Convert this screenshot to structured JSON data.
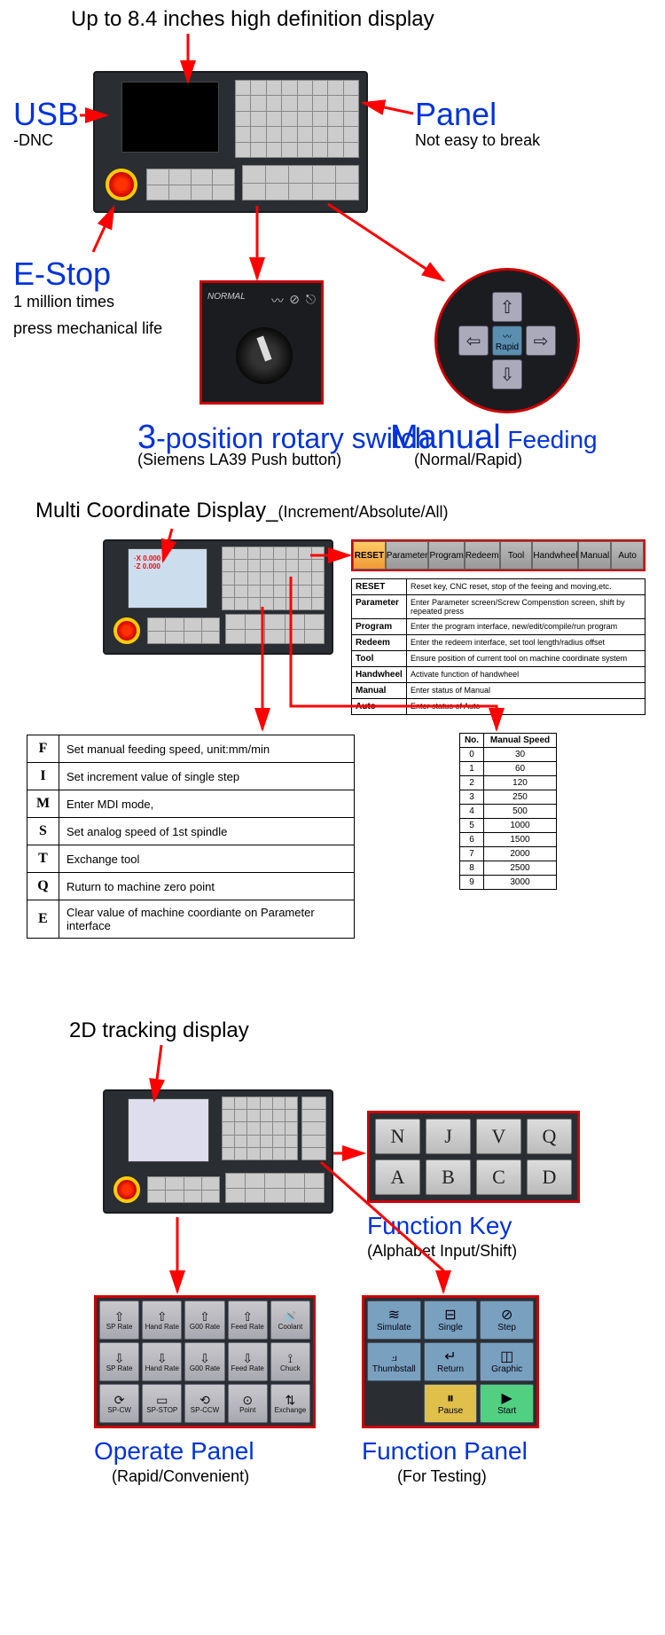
{
  "colors": {
    "blue_title": "#0033dd",
    "arrow": "#ff0000",
    "border_red": "#cc0000",
    "panel_bg": "#2a2e33",
    "fp_blue": "#7aa0c0",
    "fp_pause": "#e0c04a",
    "fp_start": "#50d080"
  },
  "s1": {
    "headline": "Up to 8.4 inches high definition display",
    "usb": "USB",
    "dnc": "-DNC",
    "panel": "Panel",
    "panel_sub": "Not easy to break",
    "estop": "E-Stop",
    "estop_sub1": "1 million times",
    "estop_sub2": "press mechanical life",
    "rotary_num": "3",
    "rotary": "-position rotary switch",
    "rotary_sub": "(Siemens LA39 Push button)",
    "manual_main": "Manual",
    "manual_feed": " Feeding",
    "manual_sub": "(Normal/Rapid)",
    "rotary_normal": "NORMAL",
    "arrow_up": "⇧",
    "arrow_down": "⇩",
    "arrow_left": "⇦",
    "arrow_right": "⇨",
    "rapid": "Rapid"
  },
  "s2": {
    "title_main": "Multi Coordinate Display_",
    "title_sub": "(Increment/Absolute/All)",
    "screen_x": "·X    0.000",
    "screen_z": "·Z    0.000",
    "softkeys": [
      "RESET",
      "Parameter",
      "Program",
      "Redeem",
      "Tool",
      "Handwheel",
      "Manual",
      "Auto"
    ],
    "reset_table": [
      [
        "RESET",
        "Reset key, CNC reset, stop of the feeing and moving,etc."
      ],
      [
        "Parameter",
        "Enter Parameter screen/Screw Compenstion screen, shift by repeated press"
      ],
      [
        "Program",
        "Enter the program interface, new/edit/compile/run program"
      ],
      [
        "Redeem",
        "Enter the redeem interface, set tool length/radius offset"
      ],
      [
        "Tool",
        "Ensure position of current tool on machine coordinate system"
      ],
      [
        "Handwheel",
        "Activate function of handwheel"
      ],
      [
        "Manual",
        "Enter status of Manual"
      ],
      [
        "Auto",
        "Enter status of Auto"
      ]
    ],
    "fe_table": [
      [
        "F",
        "Set manual feeding speed, unit:mm/min"
      ],
      [
        "I",
        "Set increment value of single step"
      ],
      [
        "M",
        "Enter MDI mode,"
      ],
      [
        "S",
        "Set analog speed of 1st spindle"
      ],
      [
        "T",
        "Exchange tool"
      ],
      [
        "Q",
        "Ruturn to machine zero point"
      ],
      [
        "E",
        "Clear value of machine coordiante on Parameter interface"
      ]
    ],
    "speed_header": [
      "No.",
      "Manual Speed"
    ],
    "speed_table": [
      [
        "0",
        "30"
      ],
      [
        "1",
        "60"
      ],
      [
        "2",
        "120"
      ],
      [
        "3",
        "250"
      ],
      [
        "4",
        "500"
      ],
      [
        "5",
        "1000"
      ],
      [
        "6",
        "1500"
      ],
      [
        "7",
        "2000"
      ],
      [
        "8",
        "2500"
      ],
      [
        "9",
        "3000"
      ]
    ]
  },
  "s3": {
    "title": "2D tracking display",
    "funckeys": [
      "N",
      "J",
      "V",
      "Q",
      "A",
      "B",
      "C",
      "D"
    ],
    "funckey_t": "Function Key",
    "funckey_s": "(Alphabet Input/Shift)",
    "op_buttons": [
      {
        "icon": "⇧",
        "label": "SP Rate"
      },
      {
        "icon": "⇧",
        "label": "Hand Rate"
      },
      {
        "icon": "⇧",
        "label": "G00 Rate"
      },
      {
        "icon": "⇧",
        "label": "Feed Rate"
      },
      {
        "icon": "🚿",
        "label": "Coolant"
      },
      {
        "icon": "⇩",
        "label": "SP Rate"
      },
      {
        "icon": "⇩",
        "label": "Hand Rate"
      },
      {
        "icon": "⇩",
        "label": "G00 Rate"
      },
      {
        "icon": "⇩",
        "label": "Feed Rate"
      },
      {
        "icon": "⟟",
        "label": "Chuck"
      },
      {
        "icon": "⟳",
        "label": "SP-CW"
      },
      {
        "icon": "▭",
        "label": "SP-STOP"
      },
      {
        "icon": "⟲",
        "label": "SP-CCW"
      },
      {
        "icon": "⊙",
        "label": "Point"
      },
      {
        "icon": "⇅",
        "label": "Exchange"
      }
    ],
    "op_t": "Operate Panel",
    "op_s": "(Rapid/Convenient)",
    "fp_buttons": [
      {
        "icon": "≋",
        "label": "Simulate",
        "cls": ""
      },
      {
        "icon": "⊟",
        "label": "Single",
        "cls": ""
      },
      {
        "icon": "⊘",
        "label": "Step",
        "cls": ""
      },
      {
        "icon": "⟓",
        "label": "Thumbstall",
        "cls": ""
      },
      {
        "icon": "↵",
        "label": "Return",
        "cls": ""
      },
      {
        "icon": "◫",
        "label": "Graphic",
        "cls": ""
      },
      {
        "icon": "",
        "label": "",
        "cls": "blank"
      },
      {
        "icon": "⏸",
        "label": "Pause",
        "cls": "pause"
      },
      {
        "icon": "▶",
        "label": "Start",
        "cls": "start"
      }
    ],
    "fp_t": "Function Panel",
    "fp_s": "(For Testing)"
  }
}
